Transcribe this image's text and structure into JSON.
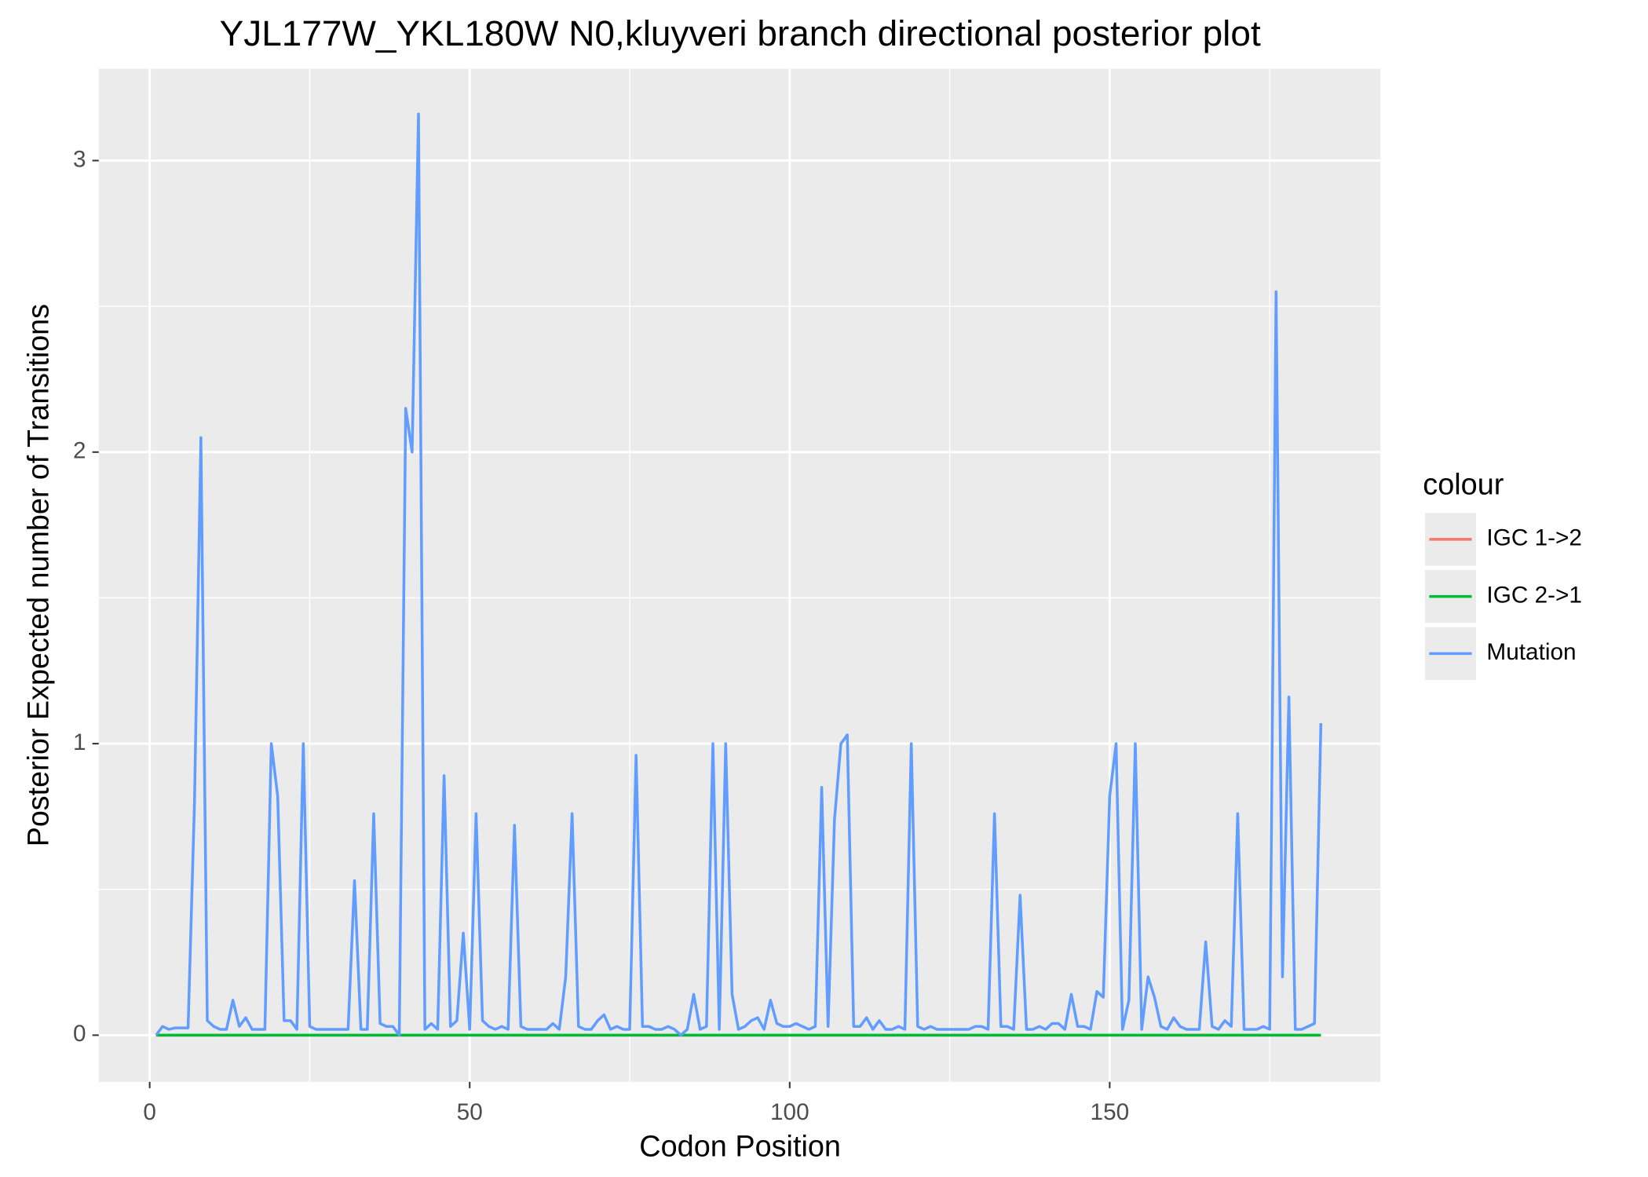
{
  "chart_data": {
    "type": "line",
    "title": "YJL177W_YKL180W N0,kluyveri branch directional posterior plot",
    "x_label": "Codon Position",
    "y_label": "Posterior Expected number of Transitions",
    "legend_title": "colour",
    "legend_position": "right",
    "grid": true,
    "xlim": [
      -7.96,
      192.3
    ],
    "ylim": [
      -0.16,
      3.315
    ],
    "xticks": [
      0,
      50,
      100,
      150
    ],
    "yticks": [
      0,
      1,
      2,
      3
    ],
    "x": [
      1,
      2,
      3,
      4,
      5,
      6,
      7,
      8,
      9,
      10,
      11,
      12,
      13,
      14,
      15,
      16,
      17,
      18,
      19,
      20,
      21,
      22,
      23,
      24,
      25,
      26,
      27,
      28,
      29,
      30,
      31,
      32,
      33,
      34,
      35,
      36,
      37,
      38,
      39,
      40,
      41,
      42,
      43,
      44,
      45,
      46,
      47,
      48,
      49,
      50,
      51,
      52,
      53,
      54,
      55,
      56,
      57,
      58,
      59,
      60,
      61,
      62,
      63,
      64,
      65,
      66,
      67,
      68,
      69,
      70,
      71,
      72,
      73,
      74,
      75,
      76,
      77,
      78,
      79,
      80,
      81,
      82,
      83,
      84,
      85,
      86,
      87,
      88,
      89,
      90,
      91,
      92,
      93,
      94,
      95,
      96,
      97,
      98,
      99,
      100,
      101,
      102,
      103,
      104,
      105,
      106,
      107,
      108,
      109,
      110,
      111,
      112,
      113,
      114,
      115,
      116,
      117,
      118,
      119,
      120,
      121,
      122,
      123,
      124,
      125,
      126,
      127,
      128,
      129,
      130,
      131,
      132,
      133,
      134,
      135,
      136,
      137,
      138,
      139,
      140,
      141,
      142,
      143,
      144,
      145,
      146,
      147,
      148,
      149,
      150,
      151,
      152,
      153,
      154,
      155,
      156,
      157,
      158,
      159,
      160,
      161,
      162,
      163,
      164,
      165,
      166,
      167,
      168,
      169,
      170,
      171,
      172,
      173,
      174,
      175,
      176,
      177,
      178,
      179,
      180,
      181,
      182,
      183
    ],
    "series": [
      {
        "name": "IGC 1->2",
        "color": "#F8766D",
        "values": [
          0,
          0,
          0,
          0,
          0,
          0,
          0,
          0,
          0,
          0,
          0,
          0,
          0,
          0,
          0,
          0,
          0,
          0,
          0,
          0,
          0,
          0,
          0,
          0,
          0,
          0,
          0,
          0,
          0,
          0,
          0,
          0,
          0,
          0,
          0,
          0,
          0,
          0,
          0,
          0,
          0,
          0,
          0,
          0,
          0,
          0,
          0,
          0,
          0,
          0,
          0,
          0,
          0,
          0,
          0,
          0,
          0,
          0,
          0,
          0,
          0,
          0,
          0,
          0,
          0,
          0,
          0,
          0,
          0,
          0,
          0,
          0,
          0,
          0,
          0,
          0,
          0,
          0,
          0,
          0,
          0,
          0,
          0,
          0,
          0,
          0,
          0,
          0,
          0,
          0,
          0,
          0,
          0,
          0,
          0,
          0,
          0,
          0,
          0,
          0,
          0,
          0,
          0,
          0,
          0,
          0,
          0,
          0,
          0,
          0,
          0,
          0,
          0,
          0,
          0,
          0,
          0,
          0,
          0,
          0,
          0,
          0,
          0,
          0,
          0,
          0,
          0,
          0,
          0,
          0,
          0,
          0,
          0,
          0,
          0,
          0,
          0,
          0,
          0,
          0,
          0,
          0,
          0,
          0,
          0,
          0,
          0,
          0,
          0,
          0,
          0,
          0,
          0,
          0,
          0,
          0,
          0,
          0,
          0,
          0,
          0,
          0,
          0,
          0,
          0,
          0,
          0,
          0,
          0,
          0,
          0,
          0,
          0,
          0,
          0,
          0,
          0,
          0,
          0,
          0,
          0,
          0,
          0
        ]
      },
      {
        "name": "IGC 2->1",
        "color": "#00BA38",
        "values": [
          0,
          0,
          0,
          0,
          0,
          0,
          0,
          0,
          0,
          0,
          0,
          0,
          0,
          0,
          0,
          0,
          0,
          0,
          0,
          0,
          0,
          0,
          0,
          0,
          0,
          0,
          0,
          0,
          0,
          0,
          0,
          0,
          0,
          0,
          0,
          0,
          0,
          0,
          0,
          0,
          0,
          0,
          0,
          0,
          0,
          0,
          0,
          0,
          0,
          0,
          0,
          0,
          0,
          0,
          0,
          0,
          0,
          0,
          0,
          0,
          0,
          0,
          0,
          0,
          0,
          0,
          0,
          0,
          0,
          0,
          0,
          0,
          0,
          0,
          0,
          0,
          0,
          0,
          0,
          0,
          0,
          0,
          0,
          0,
          0,
          0,
          0,
          0,
          0,
          0,
          0,
          0,
          0,
          0,
          0,
          0,
          0,
          0,
          0,
          0,
          0,
          0,
          0,
          0,
          0,
          0,
          0,
          0,
          0,
          0,
          0,
          0,
          0,
          0,
          0,
          0,
          0,
          0,
          0,
          0,
          0,
          0,
          0,
          0,
          0,
          0,
          0,
          0,
          0,
          0,
          0,
          0,
          0,
          0,
          0,
          0,
          0,
          0,
          0,
          0,
          0,
          0,
          0,
          0,
          0,
          0,
          0,
          0,
          0,
          0,
          0,
          0,
          0,
          0,
          0,
          0,
          0,
          0,
          0,
          0,
          0,
          0,
          0,
          0,
          0,
          0,
          0,
          0,
          0,
          0,
          0,
          0,
          0,
          0,
          0,
          0,
          0,
          0,
          0,
          0,
          0,
          0,
          0
        ]
      },
      {
        "name": "Mutation",
        "color": "#619CFF",
        "values": [
          0,
          0.03,
          0.02,
          0.025,
          0.025,
          0.025,
          0.8,
          2.05,
          0.05,
          0.03,
          0.02,
          0.02,
          0.12,
          0.03,
          0.06,
          0.02,
          0.02,
          0.02,
          1.0,
          0.82,
          0.05,
          0.05,
          0.02,
          1.0,
          0.03,
          0.02,
          0.02,
          0.02,
          0.02,
          0.02,
          0.02,
          0.53,
          0.02,
          0.02,
          0.76,
          0.04,
          0.03,
          0.03,
          0,
          2.15,
          2.0,
          3.16,
          0.02,
          0.04,
          0.02,
          0.89,
          0.03,
          0.05,
          0.35,
          0.02,
          0.76,
          0.05,
          0.03,
          0.02,
          0.03,
          0.02,
          0.72,
          0.03,
          0.02,
          0.02,
          0.02,
          0.02,
          0.04,
          0.02,
          0.2,
          0.76,
          0.03,
          0.02,
          0.02,
          0.05,
          0.07,
          0.02,
          0.03,
          0.02,
          0.02,
          0.96,
          0.03,
          0.03,
          0.02,
          0.02,
          0.03,
          0.02,
          0,
          0.02,
          0.14,
          0.02,
          0.03,
          1.0,
          0.02,
          1.0,
          0.14,
          0.02,
          0.03,
          0.05,
          0.06,
          0.02,
          0.12,
          0.04,
          0.03,
          0.03,
          0.04,
          0.03,
          0.02,
          0.03,
          0.85,
          0.03,
          0.74,
          1.0,
          1.03,
          0.03,
          0.03,
          0.06,
          0.02,
          0.05,
          0.02,
          0.02,
          0.03,
          0.02,
          1.0,
          0.03,
          0.02,
          0.03,
          0.02,
          0.02,
          0.02,
          0.02,
          0.02,
          0.02,
          0.03,
          0.03,
          0.02,
          0.76,
          0.03,
          0.03,
          0.02,
          0.48,
          0.02,
          0.02,
          0.03,
          0.02,
          0.04,
          0.04,
          0.02,
          0.14,
          0.03,
          0.03,
          0.02,
          0.15,
          0.13,
          0.82,
          1.0,
          0.02,
          0.12,
          1.0,
          0.02,
          0.2,
          0.13,
          0.03,
          0.02,
          0.06,
          0.03,
          0.02,
          0.02,
          0.02,
          0.32,
          0.03,
          0.02,
          0.05,
          0.03,
          0.76,
          0.02,
          0.02,
          0.02,
          0.03,
          0.02,
          2.55,
          0.2,
          1.16,
          0.02,
          0.02,
          0.03,
          0.04,
          1.07
        ]
      }
    ]
  }
}
